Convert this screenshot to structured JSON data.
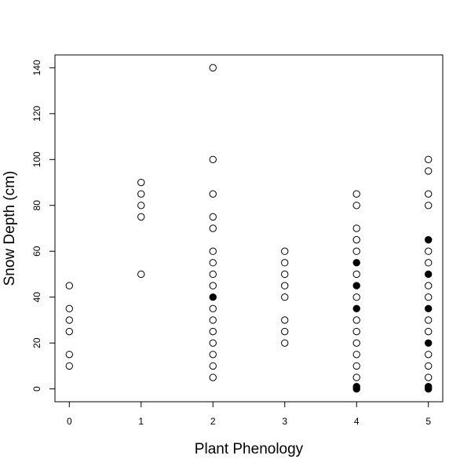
{
  "chart_data": {
    "type": "scatter",
    "xlabel": "Plant Phenology",
    "ylabel": "Snow Depth (cm)",
    "xlim": [
      -0.2,
      5.2
    ],
    "ylim": [
      -5.6,
      145.6
    ],
    "x_ticks": [
      0,
      1,
      2,
      3,
      4,
      5
    ],
    "y_ticks": [
      0,
      20,
      40,
      60,
      80,
      100,
      120,
      140
    ],
    "grid": false,
    "series": [
      {
        "marker": "open-circle",
        "points": [
          [
            0,
            10
          ],
          [
            0,
            15
          ],
          [
            0,
            25
          ],
          [
            0,
            30
          ],
          [
            0,
            35
          ],
          [
            0,
            45
          ],
          [
            1,
            50
          ],
          [
            1,
            75
          ],
          [
            1,
            80
          ],
          [
            1,
            85
          ],
          [
            1,
            90
          ],
          [
            2,
            5
          ],
          [
            2,
            10
          ],
          [
            2,
            15
          ],
          [
            2,
            20
          ],
          [
            2,
            25
          ],
          [
            2,
            30
          ],
          [
            2,
            35
          ],
          [
            2,
            45
          ],
          [
            2,
            50
          ],
          [
            2,
            55
          ],
          [
            2,
            60
          ],
          [
            2,
            70
          ],
          [
            2,
            75
          ],
          [
            2,
            85
          ],
          [
            2,
            100
          ],
          [
            2,
            140
          ],
          [
            3,
            20
          ],
          [
            3,
            25
          ],
          [
            3,
            30
          ],
          [
            3,
            40
          ],
          [
            3,
            45
          ],
          [
            3,
            50
          ],
          [
            3,
            55
          ],
          [
            3,
            60
          ],
          [
            4,
            5
          ],
          [
            4,
            10
          ],
          [
            4,
            15
          ],
          [
            4,
            20
          ],
          [
            4,
            25
          ],
          [
            4,
            30
          ],
          [
            4,
            40
          ],
          [
            4,
            50
          ],
          [
            4,
            60
          ],
          [
            4,
            65
          ],
          [
            4,
            70
          ],
          [
            4,
            80
          ],
          [
            4,
            85
          ],
          [
            5,
            5
          ],
          [
            5,
            10
          ],
          [
            5,
            15
          ],
          [
            5,
            25
          ],
          [
            5,
            30
          ],
          [
            5,
            40
          ],
          [
            5,
            45
          ],
          [
            5,
            55
          ],
          [
            5,
            60
          ],
          [
            5,
            80
          ],
          [
            5,
            85
          ],
          [
            5,
            95
          ],
          [
            5,
            100
          ]
        ]
      },
      {
        "marker": "filled-circle",
        "points": [
          [
            2,
            40
          ],
          [
            4,
            0
          ],
          [
            4,
            1
          ],
          [
            4,
            35
          ],
          [
            4,
            45
          ],
          [
            4,
            55
          ],
          [
            5,
            0
          ],
          [
            5,
            1
          ],
          [
            5,
            20
          ],
          [
            5,
            35
          ],
          [
            5,
            50
          ],
          [
            5,
            65
          ]
        ]
      }
    ]
  }
}
